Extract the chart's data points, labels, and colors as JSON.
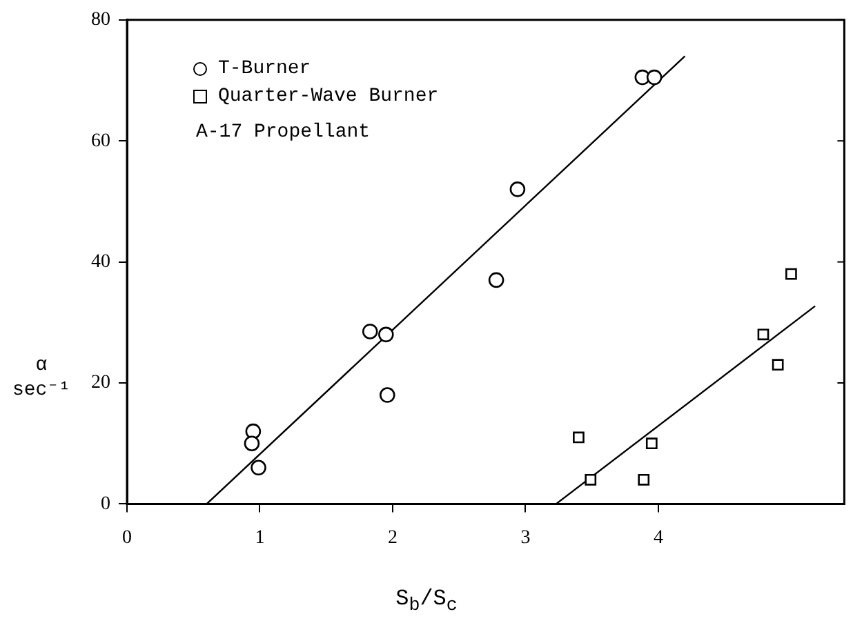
{
  "chart_data": {
    "type": "scatter",
    "xlabel": "S$_{b}$/S$_{c}$",
    "ylabel": "α sec⁻¹",
    "xlim": [
      0,
      5.4
    ],
    "xticks": [
      0,
      1,
      2,
      3,
      4
    ],
    "ylim": [
      0,
      80
    ],
    "yticks": [
      0,
      20,
      40,
      60,
      80
    ],
    "grid": false,
    "legend": "top left",
    "annotations": [
      "A-17 Propellant"
    ],
    "series": [
      {
        "name": "T-Burner",
        "type": "scatter",
        "marker": "circle",
        "color": "#000000",
        "x": [
          0.95,
          0.94,
          0.99,
          1.83,
          1.95,
          1.96,
          2.78,
          2.94,
          3.88,
          3.97
        ],
        "values": [
          12,
          10,
          6,
          28.5,
          28,
          18,
          37,
          52,
          70.5,
          70.5
        ]
      },
      {
        "name": "Quarter-Wave Burner",
        "type": "scatter",
        "marker": "square",
        "color": "#000000",
        "x": [
          3.4,
          3.49,
          3.89,
          3.95,
          4.79,
          4.9,
          5.0
        ],
        "values": [
          11,
          4,
          4,
          10,
          28,
          23,
          38
        ]
      },
      {
        "type": "line",
        "marker": "none",
        "line_style": "solid",
        "color": "#000000",
        "x": [
          0.6,
          4.2
        ],
        "values": [
          0,
          74
        ]
      },
      {
        "type": "line",
        "marker": "none",
        "line_style": "solid",
        "color": "#000000",
        "x": [
          3.23,
          5.18
        ],
        "values": [
          0,
          32.7
        ]
      }
    ]
  }
}
